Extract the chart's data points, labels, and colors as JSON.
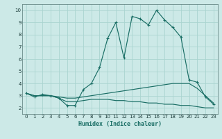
{
  "xlabel": "Humidex (Indice chaleur)",
  "xlim": [
    -0.5,
    23.5
  ],
  "ylim": [
    1.5,
    10.5
  ],
  "yticks": [
    2,
    3,
    4,
    5,
    6,
    7,
    8,
    9,
    10
  ],
  "xticks": [
    0,
    1,
    2,
    3,
    4,
    5,
    6,
    7,
    8,
    9,
    10,
    11,
    12,
    13,
    14,
    15,
    16,
    17,
    18,
    19,
    20,
    21,
    22,
    23
  ],
  "bg_color": "#cce9e7",
  "grid_color": "#aad4d0",
  "line_color": "#1a6e65",
  "line1_x": [
    0,
    1,
    2,
    3,
    4,
    5,
    6,
    7,
    8,
    9,
    10,
    11,
    12,
    13,
    14,
    15,
    16,
    17,
    18,
    19,
    20,
    21,
    22,
    23
  ],
  "line1_y": [
    3.2,
    2.9,
    3.1,
    3.0,
    2.8,
    2.2,
    2.2,
    3.5,
    4.0,
    5.3,
    7.7,
    9.0,
    6.1,
    9.5,
    9.3,
    8.8,
    10.0,
    9.2,
    8.6,
    7.8,
    4.3,
    4.1,
    2.9,
    2.3
  ],
  "line2_x": [
    0,
    1,
    2,
    3,
    4,
    5,
    6,
    7,
    8,
    9,
    10,
    11,
    12,
    13,
    14,
    15,
    16,
    17,
    18,
    19,
    20,
    21,
    22,
    23
  ],
  "line2_y": [
    3.2,
    3.0,
    3.0,
    3.0,
    2.9,
    2.8,
    2.8,
    2.9,
    3.0,
    3.1,
    3.2,
    3.3,
    3.4,
    3.5,
    3.6,
    3.7,
    3.8,
    3.9,
    4.0,
    4.0,
    4.0,
    3.6,
    3.0,
    2.4
  ],
  "line3_x": [
    0,
    1,
    2,
    3,
    4,
    5,
    6,
    7,
    8,
    9,
    10,
    11,
    12,
    13,
    14,
    15,
    16,
    17,
    18,
    19,
    20,
    21,
    22,
    23
  ],
  "line3_y": [
    3.2,
    3.0,
    3.0,
    3.0,
    2.8,
    2.5,
    2.5,
    2.6,
    2.7,
    2.7,
    2.7,
    2.6,
    2.6,
    2.5,
    2.5,
    2.4,
    2.4,
    2.3,
    2.3,
    2.2,
    2.2,
    2.1,
    2.0,
    2.0
  ]
}
